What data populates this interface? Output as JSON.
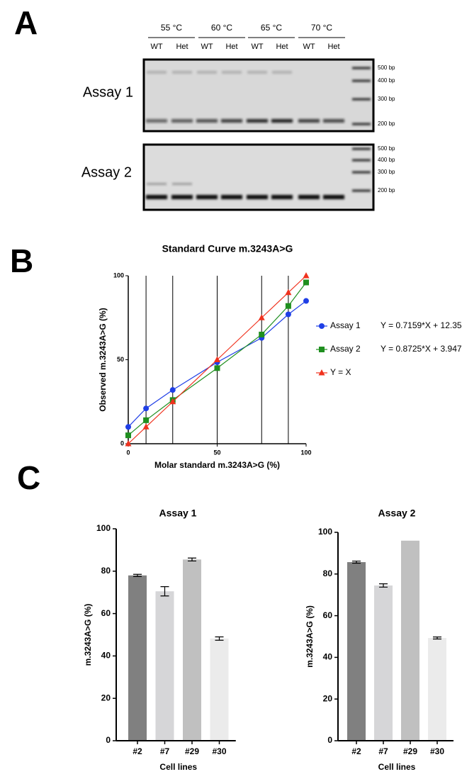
{
  "panel_labels": [
    "A",
    "B",
    "C"
  ],
  "gel": {
    "temperatures": [
      "55 °C",
      "60 °C",
      "65 °C",
      "70 °C"
    ],
    "lanes": [
      "WT",
      "Het",
      "WT",
      "Het",
      "WT",
      "Het",
      "WT",
      "Het"
    ],
    "assays": [
      "Assay 1",
      "Assay 2"
    ],
    "ladder": [
      [
        "500 bp",
        "400 bp",
        "300 bp",
        "200 bp"
      ],
      [
        "500 bp",
        "400 bp",
        "300 bp",
        "200 bp"
      ]
    ]
  },
  "chart_data": [
    {
      "type": "line",
      "title": "Standard Curve m.3243A>G",
      "x_label": "Molar standard m.3243A>G (%)",
      "y_label": "Observed m.3243A>G (%)",
      "x": [
        0,
        10,
        25,
        50,
        75,
        90,
        100
      ],
      "series": [
        {
          "name": "Assay 1",
          "color": "#1f3fe6",
          "marker": "circle",
          "equation": "Y = 0.7159*X + 12.35",
          "values": [
            10,
            21,
            32,
            48.5,
            63,
            77,
            85
          ]
        },
        {
          "name": "Assay 2",
          "color": "#1f8f1f",
          "marker": "square",
          "equation": "Y = 0.8725*X + 3.947",
          "values": [
            5,
            14,
            26,
            45,
            65,
            82,
            96
          ]
        },
        {
          "name": "Y = X",
          "color": "#f0321e",
          "marker": "triangle",
          "values": [
            0,
            10,
            25,
            50,
            75,
            90,
            100
          ]
        }
      ],
      "xlim": [
        0,
        100
      ],
      "ylim": [
        0,
        100
      ],
      "xticks": [
        0,
        50,
        100
      ],
      "yticks": [
        0,
        50,
        100
      ],
      "reference_x": [
        10,
        25,
        50,
        75,
        90
      ],
      "legend": "right"
    },
    {
      "type": "bar",
      "title": "Assay 1",
      "x_label": "Cell lines",
      "y_label": "m.3243A>G (%)",
      "categories": [
        "#2",
        "#7",
        "#29",
        "#30"
      ],
      "values": [
        78,
        70.5,
        85.5,
        48.2
      ],
      "errors": [
        0.5,
        2.2,
        0.7,
        0.8
      ],
      "colors": [
        "#808080",
        "#d6d6d8",
        "#c0c0c0",
        "#ebebeb"
      ],
      "ylim": [
        0,
        100
      ],
      "yticks": [
        0,
        20,
        40,
        60,
        80,
        100
      ]
    },
    {
      "type": "bar",
      "title": "Assay 2",
      "x_label": "Cell lines",
      "y_label": "m.3243A>G (%)",
      "categories": [
        "#2",
        "#7",
        "#29",
        "#30"
      ],
      "values": [
        85.7,
        74.5,
        96,
        49.3
      ],
      "errors": [
        0.5,
        0.8,
        null,
        0.5
      ],
      "colors": [
        "#808080",
        "#d6d6d8",
        "#c0c0c0",
        "#ebebeb"
      ],
      "ylim": [
        0,
        100
      ],
      "yticks": [
        0,
        20,
        40,
        60,
        80,
        100
      ]
    }
  ]
}
